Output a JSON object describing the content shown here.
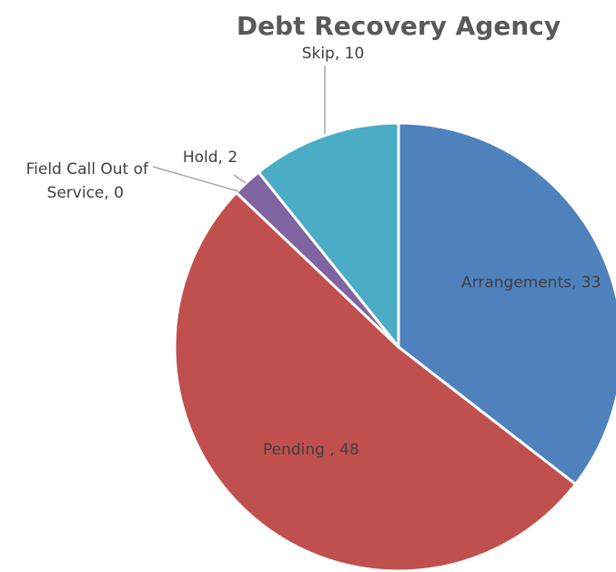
{
  "chart_data": {
    "type": "pie",
    "title": "Debt Recovery Agency",
    "slices": [
      {
        "category": "Arrangements",
        "value": 33,
        "label": "Arrangements, 33",
        "color": "#4f81bd"
      },
      {
        "category": "Pending ",
        "value": 48,
        "label": "Pending , 48",
        "color": "#c0504d"
      },
      {
        "category": "Field Call Out of Service",
        "value": 0,
        "label": "Field Call Out of Service, 0",
        "label_lines": [
          "Field Call Out of",
          "Service, 0"
        ],
        "color": "#9bbb59"
      },
      {
        "category": "Hold",
        "value": 2,
        "label": "Hold, 2",
        "color": "#8064a2"
      },
      {
        "category": "Skip",
        "value": 10,
        "label": "Skip, 10",
        "color": "#4bacc6"
      }
    ],
    "start_angle": "12 o'clock",
    "direction": "clockwise",
    "legend": "none",
    "data_labels": true
  }
}
